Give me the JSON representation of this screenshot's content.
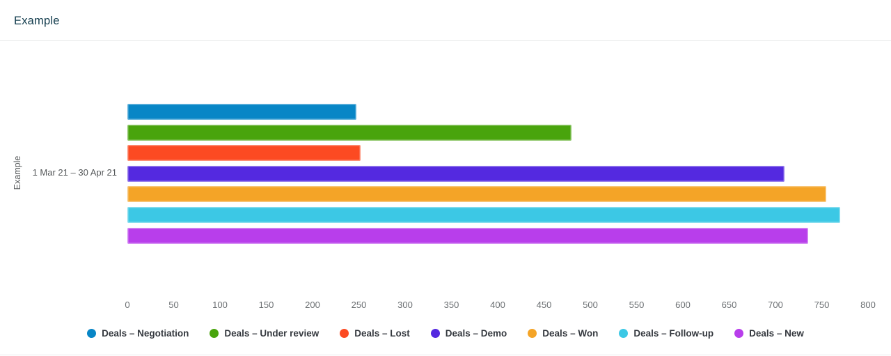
{
  "header": {
    "title": "Example"
  },
  "chart_data": {
    "type": "bar",
    "orientation": "horizontal",
    "title": "Example",
    "ylabel": "Example",
    "xlabel": "",
    "categories": [
      "1 Mar 21 – 30 Apr 21"
    ],
    "series": [
      {
        "name": "Deals – Negotiation",
        "color": "#0886c6",
        "values": [
          247
        ]
      },
      {
        "name": "Deals – Under review",
        "color": "#49a40d",
        "values": [
          480
        ]
      },
      {
        "name": "Deals – Lost",
        "color": "#fc4a22",
        "values": [
          252
        ]
      },
      {
        "name": "Deals – Demo",
        "color": "#5429e0",
        "values": [
          710
        ]
      },
      {
        "name": "Deals – Won",
        "color": "#f4a427",
        "values": [
          755
        ]
      },
      {
        "name": "Deals – Follow-up",
        "color": "#3cc8e5",
        "values": [
          770
        ]
      },
      {
        "name": "Deals – New",
        "color": "#b83eeb",
        "values": [
          735
        ]
      }
    ],
    "xlim": [
      0,
      800
    ],
    "xticks": [
      0,
      50,
      100,
      150,
      200,
      250,
      300,
      350,
      400,
      450,
      500,
      550,
      600,
      650,
      700,
      750,
      800
    ],
    "grid": false,
    "legend_position": "bottom"
  }
}
